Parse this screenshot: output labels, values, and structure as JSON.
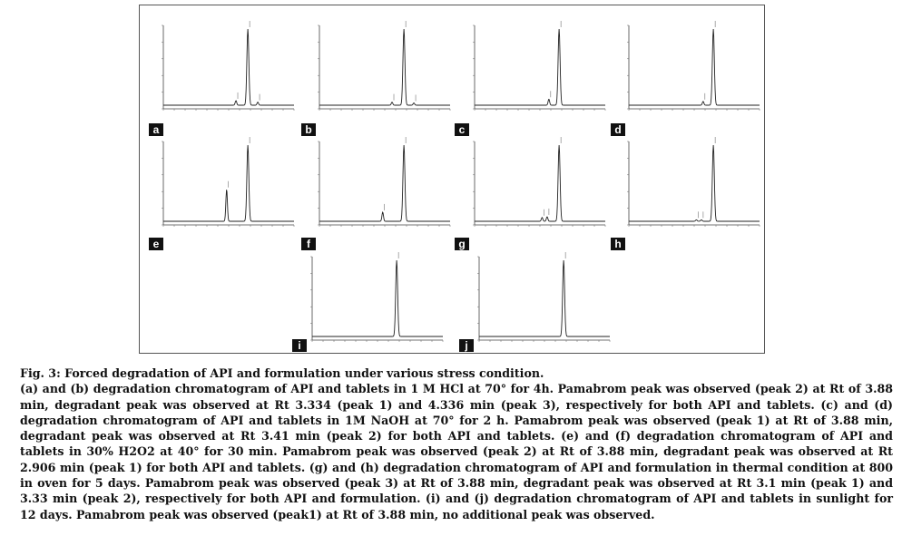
{
  "figure": {
    "panels": [
      {
        "label": "a",
        "chart_data": {
          "type": "line",
          "peaks": [
            {
              "rt": 3.334,
              "height": 0.06
            },
            {
              "rt": 3.88,
              "height": 1.0
            },
            {
              "rt": 4.336,
              "height": 0.04
            }
          ],
          "xlim": [
            0,
            6
          ]
        }
      },
      {
        "label": "b",
        "chart_data": {
          "type": "line",
          "peaks": [
            {
              "rt": 3.334,
              "height": 0.04
            },
            {
              "rt": 3.88,
              "height": 1.0
            },
            {
              "rt": 4.336,
              "height": 0.03
            }
          ],
          "xlim": [
            0,
            6
          ]
        }
      },
      {
        "label": "c",
        "chart_data": {
          "type": "line",
          "peaks": [
            {
              "rt": 3.41,
              "height": 0.08
            },
            {
              "rt": 3.88,
              "height": 1.0
            }
          ],
          "xlim": [
            0,
            6
          ]
        }
      },
      {
        "label": "d",
        "chart_data": {
          "type": "line",
          "peaks": [
            {
              "rt": 3.41,
              "height": 0.05
            },
            {
              "rt": 3.88,
              "height": 1.0
            }
          ],
          "xlim": [
            0,
            6
          ]
        }
      },
      {
        "label": "e",
        "chart_data": {
          "type": "line",
          "peaks": [
            {
              "rt": 2.906,
              "height": 0.42
            },
            {
              "rt": 3.88,
              "height": 1.0
            }
          ],
          "xlim": [
            0,
            6
          ]
        }
      },
      {
        "label": "f",
        "chart_data": {
          "type": "line",
          "peaks": [
            {
              "rt": 2.906,
              "height": 0.12
            },
            {
              "rt": 3.88,
              "height": 1.0
            }
          ],
          "xlim": [
            0,
            6
          ]
        }
      },
      {
        "label": "g",
        "chart_data": {
          "type": "line",
          "peaks": [
            {
              "rt": 3.1,
              "height": 0.05
            },
            {
              "rt": 3.33,
              "height": 0.06
            },
            {
              "rt": 3.88,
              "height": 1.0
            }
          ],
          "xlim": [
            0,
            6
          ]
        }
      },
      {
        "label": "h",
        "chart_data": {
          "type": "line",
          "peaks": [
            {
              "rt": 3.1,
              "height": 0.02
            },
            {
              "rt": 3.33,
              "height": 0.02
            },
            {
              "rt": 3.88,
              "height": 1.0
            }
          ],
          "xlim": [
            0,
            6
          ]
        }
      },
      {
        "label": "i",
        "chart_data": {
          "type": "line",
          "peaks": [
            {
              "rt": 3.88,
              "height": 1.0
            }
          ],
          "xlim": [
            0,
            6
          ]
        }
      },
      {
        "label": "j",
        "chart_data": {
          "type": "line",
          "peaks": [
            {
              "rt": 3.88,
              "height": 1.0
            }
          ],
          "xlim": [
            0,
            6
          ]
        }
      }
    ]
  },
  "caption": {
    "title": "Fig. 3: Forced degradation of API and formulation under various stress condition.",
    "body": "(a) and (b) degradation chromatogram of API and tablets in 1 M HCl at 70° for 4h. Pamabrom peak was observed (peak 2) at Rt of 3.88 min, degradant peak was observed at Rt 3.334 (peak 1) and 4.336 min (peak 3), respectively for both API and tablets. (c) and (d) degradation chromatogram of API and tablets in 1M NaOH at 70° for 2 h. Pamabrom peak was observed (peak 1) at Rt of 3.88 min, degradant peak was observed at Rt 3.41 min (peak 2) for both API and tablets. (e) and (f) degradation chromatogram of API and tablets in 30% H2O2 at 40° for 30 min. Pamabrom peak was observed (peak 2) at Rt of 3.88 min, degradant peak was observed at Rt 2.906 min (peak 1) for both API and tablets. (g) and (h) degradation chromatogram of API and formulation in thermal condition at 800 in oven for 5 days. Pamabrom peak was observed (peak 3) at Rt of 3.88 min, degradant peak was observed at Rt 3.1 min (peak 1) and 3.33 min (peak 2), respectively for both API and formulation. (i) and (j) degradation chromatogram of API and tablets in sunlight for 12 days. Pamabrom peak was observed (peak1) at Rt of 3.88 min, no additional peak was observed."
  }
}
